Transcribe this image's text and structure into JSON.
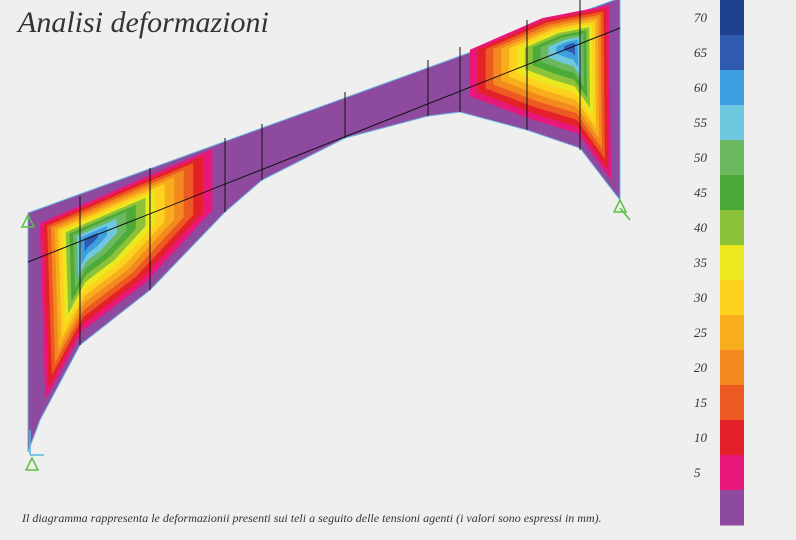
{
  "header": {
    "title": "Analisi deformazioni"
  },
  "caption": "Il diagramma rappresenta le deformazionii presenti sui teli a seguito delle tensioni agenti (i valori sono espressi in mm).",
  "legend": {
    "values": [
      70,
      65,
      60,
      55,
      50,
      45,
      40,
      35,
      30,
      25,
      20,
      15,
      10,
      5
    ],
    "colors": [
      "#1f3f8f",
      "#2e5bb0",
      "#3d9ee0",
      "#6ec8e0",
      "#6cb860",
      "#4caa38",
      "#8cc23a",
      "#ece820",
      "#fcd21e",
      "#f8ae1c",
      "#f28a1e",
      "#ec5a22",
      "#e42028",
      "#e8187a",
      "#8e4a9e"
    ]
  }
}
